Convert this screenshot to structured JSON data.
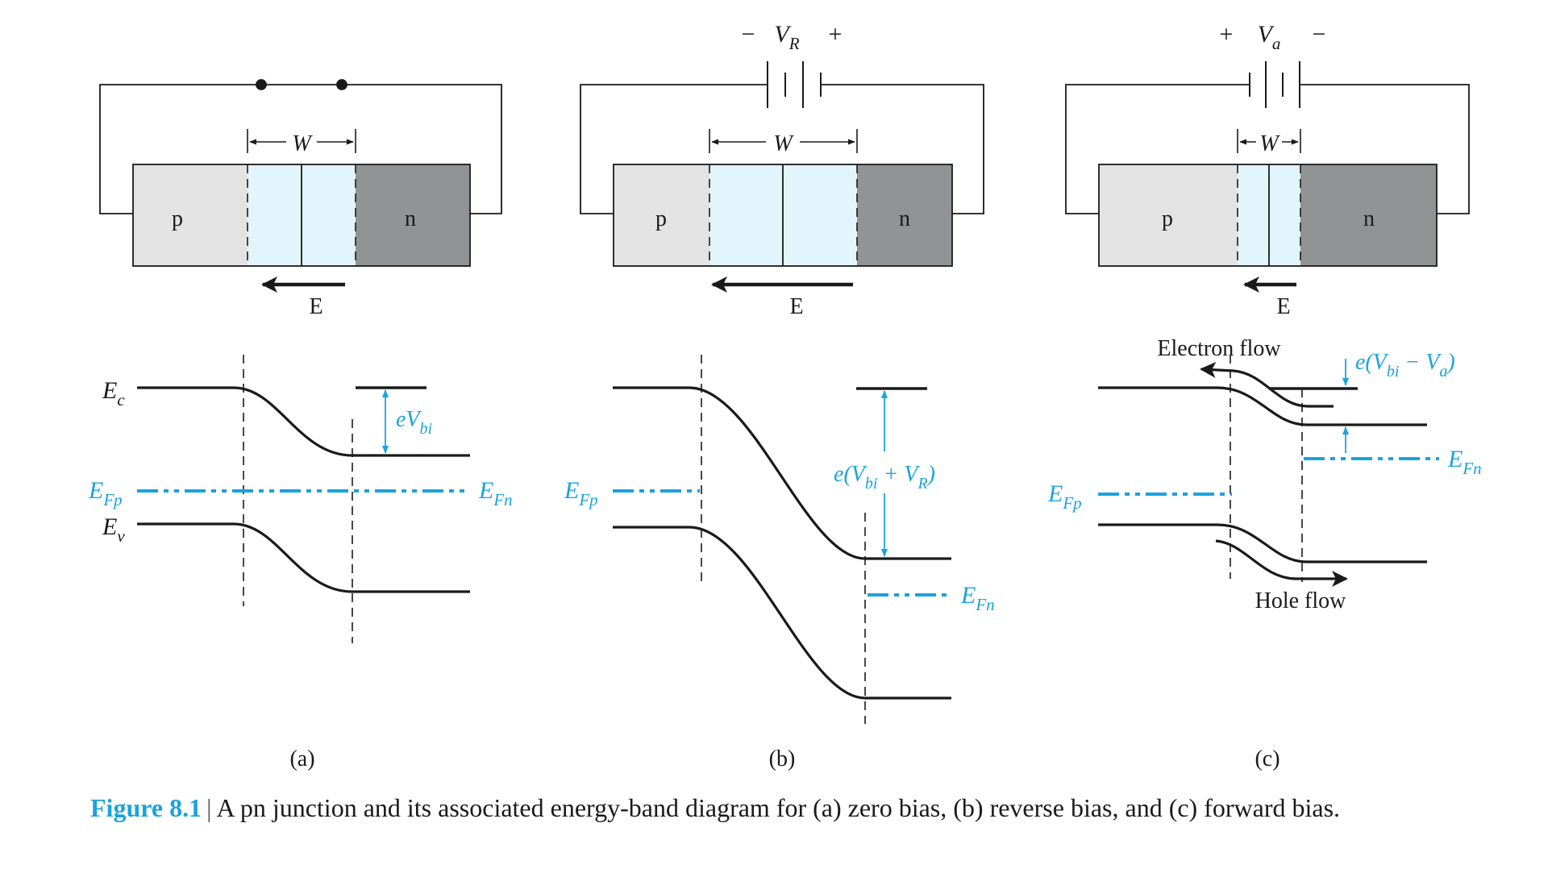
{
  "panels": [
    {
      "label": "(a)",
      "p": "p",
      "n": "n",
      "w": "W",
      "field": "E",
      "ec": "E",
      "ec_sub": "c",
      "ev": "E",
      "ev_sub": "v",
      "efp": "E",
      "efp_sub": "Fp",
      "efn": "E",
      "efn_sub": "Fn",
      "barrier_main": "eV",
      "barrier_sub": "bi"
    },
    {
      "label": "(b)",
      "p": "p",
      "n": "n",
      "w": "W",
      "field": "E",
      "bias_minus": "−",
      "bias_v": "V",
      "bias_sub": "R",
      "bias_plus": "+",
      "efp": "E",
      "efp_sub": "Fp",
      "efn": "E",
      "efn_sub": "Fn",
      "barrier_a": "e(V",
      "barrier_sub1": "bi",
      "barrier_b": " + V",
      "barrier_sub2": "R",
      "barrier_c": ")"
    },
    {
      "label": "(c)",
      "p": "p",
      "n": "n",
      "w": "W",
      "field": "E",
      "bias_plus": "+",
      "bias_v": "V",
      "bias_sub": "a",
      "bias_minus": "−",
      "efp": "E",
      "efp_sub": "Fp",
      "efn": "E",
      "efn_sub": "Fn",
      "electron_flow": "Electron flow",
      "hole_flow": "Hole flow",
      "barrier_a": "e(V",
      "barrier_sub1": "bi",
      "barrier_b": " − V",
      "barrier_sub2": "a",
      "barrier_c": ")"
    }
  ],
  "caption": {
    "figure": "Figure 8.1",
    "separator": "|",
    "text": "A pn junction and its associated energy-band diagram for (a) zero bias, (b) reverse bias, and (c) forward bias."
  },
  "colors": {
    "p_region": "#e3e3e3",
    "depletion": "#e2f4fc",
    "n_region": "#929395",
    "fermi": "#1aa3dc",
    "ink": "#1a1a1a"
  }
}
